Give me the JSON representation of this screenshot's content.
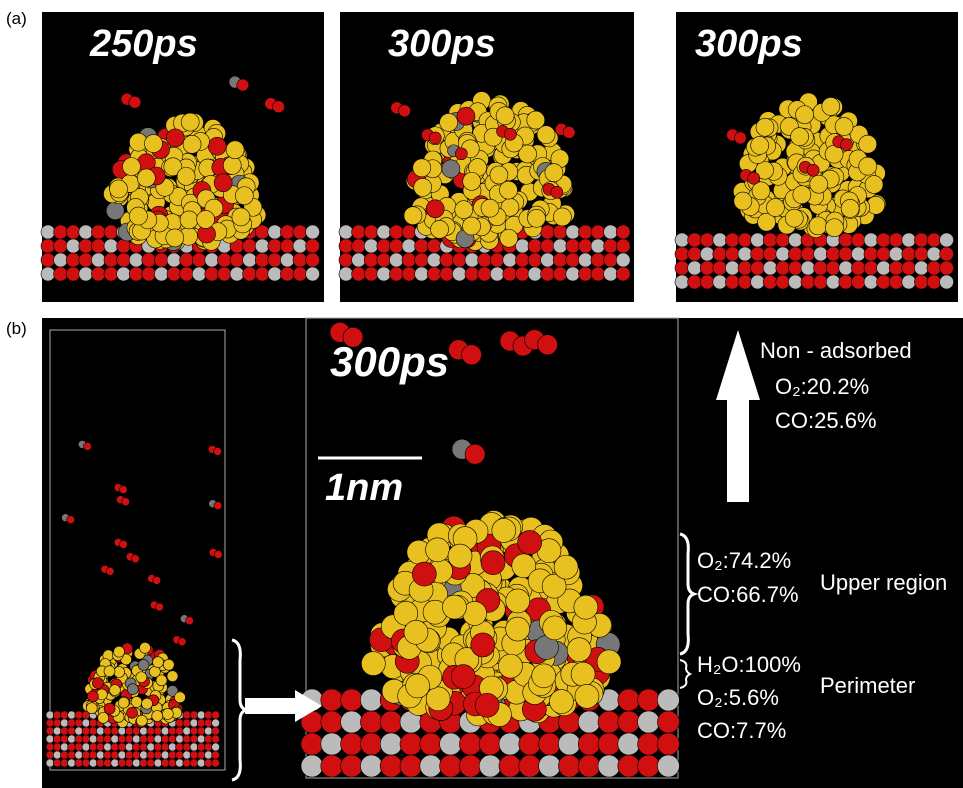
{
  "panel_a": {
    "label": "(a)",
    "frames": [
      {
        "time": "250ps"
      },
      {
        "time": "300ps"
      },
      {
        "time": "300ps"
      }
    ]
  },
  "panel_b": {
    "label": "(b)",
    "time": "300ps",
    "scale_bar": "1nm",
    "non_adsorbed": {
      "title": "Non - adsorbed",
      "rows": [
        {
          "species": "O₂:",
          "value": "20.2%"
        },
        {
          "species": "CO:",
          "value": "25.6%"
        }
      ]
    },
    "upper_region": {
      "title": "Upper region",
      "rows": [
        {
          "species": "O₂:",
          "value": "74.2%"
        },
        {
          "species": "CO:",
          "value": "66.7%"
        }
      ]
    },
    "perimeter": {
      "title": "Perimeter",
      "rows": [
        {
          "species": "H₂O:",
          "value": "100%"
        },
        {
          "species": "O₂:",
          "value": "5.6%"
        },
        {
          "species": "CO:",
          "value": "7.7%"
        }
      ]
    }
  }
}
